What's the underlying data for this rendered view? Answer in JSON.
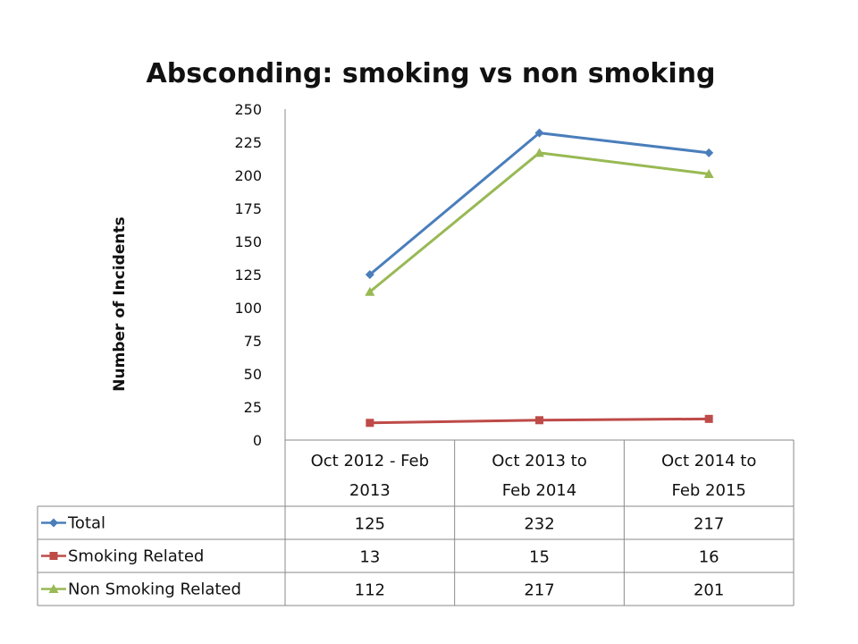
{
  "chart_data": {
    "type": "line",
    "title": "Absconding: smoking vs non smoking",
    "xlabel": "",
    "ylabel": "Number of  Incidents",
    "ylim": [
      0,
      250
    ],
    "yticks": [
      "0",
      "25",
      "50",
      "75",
      "100",
      "125",
      "150",
      "175",
      "200",
      "225",
      "250"
    ],
    "categories": [
      [
        "Oct 2012  - Feb",
        "2013"
      ],
      [
        "Oct 2013 to",
        "Feb 2014"
      ],
      [
        "Oct 2014 to",
        "Feb 2015"
      ]
    ],
    "series": [
      {
        "name": "Total",
        "values": [
          125,
          232,
          217
        ],
        "color": "#4a7ebb",
        "marker": "diamond"
      },
      {
        "name": "Smoking Related",
        "values": [
          13,
          15,
          16
        ],
        "color": "#be4b48",
        "marker": "square"
      },
      {
        "name": "Non Smoking Related",
        "values": [
          112,
          217,
          201
        ],
        "color": "#98b954",
        "marker": "triangle"
      }
    ],
    "data_table": true,
    "grid": false,
    "legend": "data-table"
  }
}
